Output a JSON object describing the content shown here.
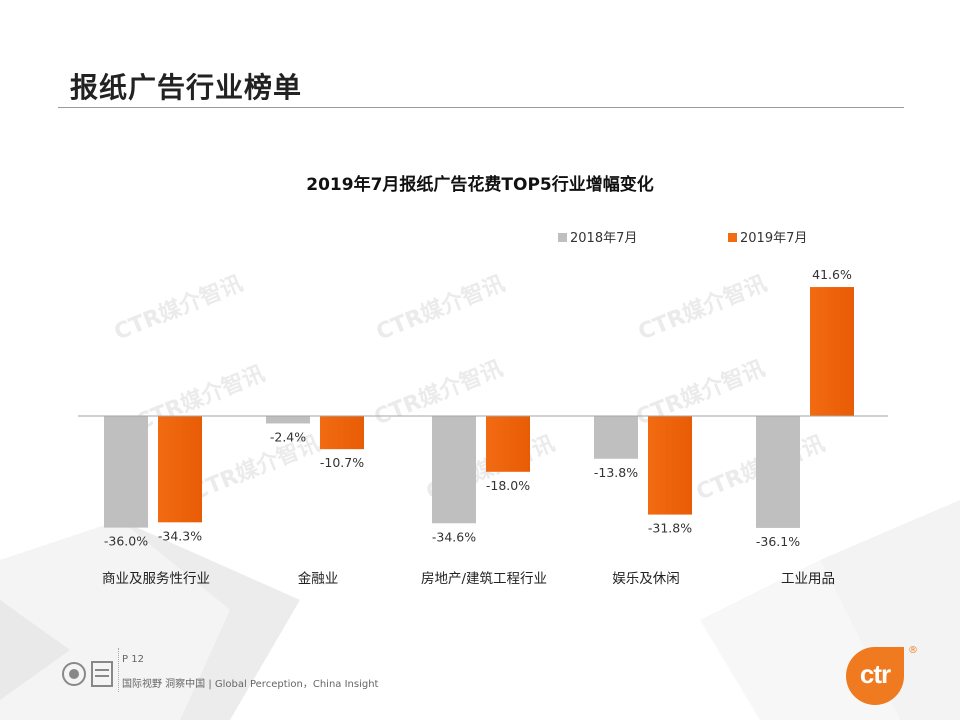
{
  "header": {
    "title": "报纸广告行业榜单"
  },
  "chart_data": {
    "type": "bar",
    "title": "2019年7月报纸广告花费TOP5行业增幅变化",
    "categories": [
      "商业及服务性行业",
      "金融业",
      "房地产/建筑工程行业",
      "娱乐及休闲",
      "工业用品"
    ],
    "series": [
      {
        "name": "2018年7月",
        "values": [
          -36.0,
          -2.4,
          -34.6,
          -13.8,
          -36.1
        ],
        "color": "#bfbfbf"
      },
      {
        "name": "2019年7月",
        "values": [
          -34.3,
          -10.7,
          -18.0,
          -31.8,
          41.6
        ],
        "color": "#f26b11"
      }
    ],
    "value_labels": [
      [
        "-36.0%",
        "-2.4%",
        "-34.6%",
        "-13.8%",
        "-36.1%"
      ],
      [
        "-34.3%",
        "-10.7%",
        "-18.0%",
        "-31.8%",
        "41.6%"
      ]
    ],
    "ylim": [
      -40,
      45
    ],
    "legend_position": "top-right",
    "xlabel": "",
    "ylabel": ""
  },
  "watermark": "CTR媒介智讯",
  "footer": {
    "page": "P 12",
    "tagline": "国际视野  洞察中国 |  Global Perception，China Insight"
  },
  "logo": {
    "text": "ctr",
    "reg_mark": "®"
  },
  "colors": {
    "accent": "#f26b11",
    "neutral": "#bfbfbf"
  }
}
